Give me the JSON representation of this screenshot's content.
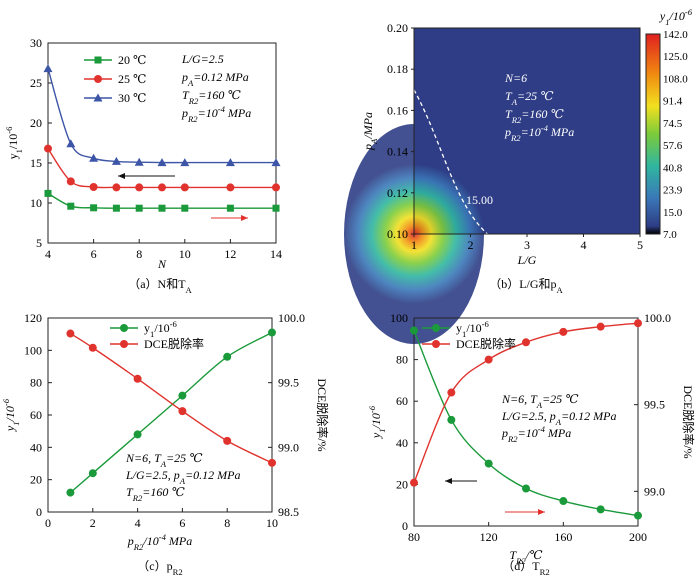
{
  "chart_data": [
    {
      "id": "a",
      "type": "line",
      "caption": "（a）N和T_A",
      "xlabel": "N",
      "ylabel": "y1/10^-6",
      "xlim": [
        4,
        14
      ],
      "ylim": [
        5,
        30
      ],
      "xticks": [
        4,
        6,
        8,
        10,
        12,
        14
      ],
      "yticks": [
        5,
        10,
        15,
        20,
        25,
        30
      ],
      "series": [
        {
          "name": "20 ℃",
          "color": "#1a9a3a",
          "marker": "square",
          "x": [
            4,
            5,
            6,
            7,
            8,
            9,
            10,
            12,
            14
          ],
          "y": [
            11.2,
            9.6,
            9.4,
            9.35,
            9.35,
            9.35,
            9.35,
            9.35,
            9.35
          ]
        },
        {
          "name": "25 ℃",
          "color": "#e0332e",
          "marker": "circle",
          "x": [
            4,
            5,
            6,
            7,
            8,
            9,
            10,
            12,
            14
          ],
          "y": [
            16.8,
            12.7,
            12.0,
            11.95,
            11.95,
            11.95,
            11.95,
            11.95,
            11.95
          ]
        },
        {
          "name": "30 ℃",
          "color": "#3c55a6",
          "marker": "triangle",
          "x": [
            4,
            5,
            6,
            7,
            8,
            9,
            10,
            12,
            14
          ],
          "y": [
            26.8,
            17.4,
            15.6,
            15.2,
            15.1,
            15.05,
            15.05,
            15.05,
            15.05
          ]
        }
      ],
      "annotation": [
        "L/G=2.5",
        "pA=0.12 MPa",
        "TR2=160 ℃",
        "pR2=10^-4 MPa"
      ]
    },
    {
      "id": "b",
      "type": "heatmap",
      "caption": "（b）L/G和p_A",
      "xlabel": "L/G",
      "ylabel": "pA/MPa",
      "xlim": [
        1,
        5
      ],
      "ylim": [
        0.1,
        0.2
      ],
      "xticks": [
        1,
        2,
        3,
        4,
        5
      ],
      "yticks": [
        "0.10",
        "0.12",
        "0.14",
        "0.16",
        "0.18",
        "0.20"
      ],
      "colorbar_title": "y1/10^-6",
      "colorbar_ticks": [
        "142.0",
        "125.0",
        "108.0",
        "91.4",
        "74.5",
        "57.6",
        "40.8",
        "23.9",
        "15.0",
        "7.0"
      ],
      "contour_label": "15.00",
      "annotation": [
        "N=6",
        "TA=25 ℃",
        "TR2=160 ℃",
        "pR2=10^-4 MPa"
      ]
    },
    {
      "id": "c",
      "type": "line",
      "caption": "（c）p_R2",
      "xlabel": "pR2/10^-4 MPa",
      "ylabel": "y1/10^-6",
      "ylabel_right": "DCE脱除率/%",
      "xlim": [
        0,
        10
      ],
      "ylim": [
        0,
        120
      ],
      "ylim_right": [
        98.5,
        100.0
      ],
      "xticks": [
        0,
        2,
        4,
        6,
        8,
        10
      ],
      "yticks": [
        0,
        20,
        40,
        60,
        80,
        100,
        120
      ],
      "yticks_right": [
        "98.5",
        "99.0",
        "99.5",
        "100.0"
      ],
      "series": [
        {
          "name": "y1/10^-6",
          "color": "#1a9a3a",
          "axis": "left",
          "x": [
            1,
            2,
            4,
            6,
            8,
            10
          ],
          "y": [
            12,
            24,
            48,
            72,
            96,
            111
          ]
        },
        {
          "name": "DCE脱除率",
          "color": "#e0332e",
          "axis": "right",
          "x": [
            1,
            2,
            4,
            6,
            8,
            10
          ],
          "y": [
            99.88,
            99.77,
            99.53,
            99.28,
            99.05,
            98.88
          ]
        }
      ],
      "annotation": [
        "N=6, TA=25 ℃",
        "L/G=2.5, pA=0.12 MPa",
        "TR2=160 ℃"
      ]
    },
    {
      "id": "d",
      "type": "line",
      "caption": "（d）T_R2",
      "xlabel": "TR2/℃",
      "ylabel": "y1/10^-6",
      "ylabel_right": "DCE脱除率/%",
      "xlim": [
        80,
        200
      ],
      "ylim": [
        0,
        100
      ],
      "ylim_right": [
        98.8,
        100.0
      ],
      "xticks": [
        80,
        120,
        160,
        200
      ],
      "yticks": [
        0,
        20,
        40,
        60,
        80,
        100
      ],
      "yticks_right": [
        "99.0",
        "99.5",
        "100.0"
      ],
      "series": [
        {
          "name": "y1/10^-6",
          "color": "#1a9a3a",
          "axis": "left",
          "x": [
            80,
            100,
            120,
            140,
            160,
            180,
            200
          ],
          "y": [
            94,
            51,
            30,
            18,
            12,
            8,
            5
          ]
        },
        {
          "name": "DCE脱除率",
          "color": "#e0332e",
          "axis": "right",
          "x": [
            80,
            100,
            120,
            140,
            160,
            180,
            200
          ],
          "y": [
            99.05,
            99.57,
            99.76,
            99.86,
            99.92,
            99.95,
            99.97
          ]
        }
      ],
      "annotation": [
        "N=6, TA=25 ℃",
        "L/G=2.5, pA=0.12 MPa",
        "pR2=10^-4 MPa"
      ]
    }
  ]
}
